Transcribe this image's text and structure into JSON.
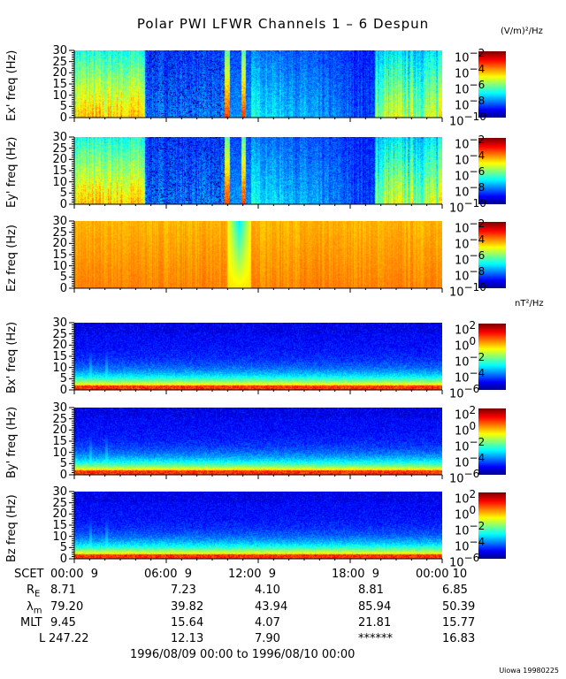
{
  "title": "Polar PWI LFWR Channels 1 – 6 Despun",
  "chart_data": {
    "type": "heatmap",
    "title": "Polar PWI LFWR Channels 1 – 6 Despun",
    "x_tick_labels": [
      "00:00  9",
      "06:00  9",
      "12:00  9",
      "18:00  9",
      "00:00 10"
    ],
    "x_range": [
      "1996/08/09 00:00",
      "1996/08/10 00:00"
    ],
    "colormap": "rainbow (blue-cyan-green-yellow-red)",
    "panels": [
      {
        "ylabel": "Ex' freq (Hz)",
        "ylim": [
          0,
          30
        ],
        "yticks": [
          "30",
          "25",
          "20",
          "15",
          "10",
          "5",
          "0"
        ],
        "colorbar": {
          "unit": "(V/m)²/Hz",
          "range": [
            1e-10,
            0.01
          ],
          "ticks": [
            {
              "base": "10",
              "exp": "−2"
            },
            {
              "base": "10",
              "exp": "−4"
            },
            {
              "base": "10",
              "exp": "−6"
            },
            {
              "base": "10",
              "exp": "−8"
            },
            {
              "base": "10",
              "exp": "−10"
            }
          ]
        }
      },
      {
        "ylabel": "Ey' freq (Hz)",
        "ylim": [
          0,
          30
        ],
        "yticks": [
          "30",
          "25",
          "20",
          "15",
          "10",
          "5",
          "0"
        ],
        "colorbar": {
          "unit": "",
          "range": [
            1e-10,
            0.01
          ],
          "ticks": [
            {
              "base": "10",
              "exp": "−2"
            },
            {
              "base": "10",
              "exp": "−4"
            },
            {
              "base": "10",
              "exp": "−6"
            },
            {
              "base": "10",
              "exp": "−8"
            },
            {
              "base": "10",
              "exp": "−10"
            }
          ]
        }
      },
      {
        "ylabel": "Ez freq (Hz)",
        "ylim": [
          0,
          30
        ],
        "yticks": [
          "30",
          "25",
          "20",
          "15",
          "10",
          "5",
          "0"
        ],
        "colorbar": {
          "unit": "",
          "range": [
            1e-10,
            0.01
          ],
          "ticks": [
            {
              "base": "10",
              "exp": "−2"
            },
            {
              "base": "10",
              "exp": "−4"
            },
            {
              "base": "10",
              "exp": "−6"
            },
            {
              "base": "10",
              "exp": "−8"
            },
            {
              "base": "10",
              "exp": "−10"
            }
          ]
        }
      },
      {
        "ylabel": "Bx' freq (Hz)",
        "ylim": [
          0,
          30
        ],
        "yticks": [
          "30",
          "25",
          "20",
          "15",
          "10",
          "5",
          "0"
        ],
        "colorbar": {
          "unit": "nT²/Hz",
          "range": [
            1e-06,
            100.0
          ],
          "ticks": [
            {
              "base": "10",
              "exp": "2"
            },
            {
              "base": "10",
              "exp": "0"
            },
            {
              "base": "10",
              "exp": "−2"
            },
            {
              "base": "10",
              "exp": "−4"
            },
            {
              "base": "10",
              "exp": "−6"
            }
          ]
        }
      },
      {
        "ylabel": "By' freq (Hz)",
        "ylim": [
          0,
          30
        ],
        "yticks": [
          "30",
          "25",
          "20",
          "15",
          "10",
          "5",
          "0"
        ],
        "colorbar": {
          "unit": "",
          "range": [
            1e-06,
            100.0
          ],
          "ticks": [
            {
              "base": "10",
              "exp": "2"
            },
            {
              "base": "10",
              "exp": "0"
            },
            {
              "base": "10",
              "exp": "−2"
            },
            {
              "base": "10",
              "exp": "−4"
            },
            {
              "base": "10",
              "exp": "−6"
            }
          ]
        }
      },
      {
        "ylabel": "Bz freq (Hz)",
        "ylim": [
          0,
          30
        ],
        "yticks": [
          "30",
          "25",
          "20",
          "15",
          "10",
          "5",
          "0"
        ],
        "colorbar": {
          "unit": "",
          "range": [
            1e-06,
            100.0
          ],
          "ticks": [
            {
              "base": "10",
              "exp": "2"
            },
            {
              "base": "10",
              "exp": "0"
            },
            {
              "base": "10",
              "exp": "−2"
            },
            {
              "base": "10",
              "exp": "−4"
            },
            {
              "base": "10",
              "exp": "−6"
            }
          ]
        }
      }
    ]
  },
  "ephemeris": {
    "rows": [
      {
        "label": "SCET",
        "sub": "",
        "values": [
          "00:00  9",
          "06:00  9",
          "12:00  9",
          "18:00  9",
          "00:00 10"
        ]
      },
      {
        "label": "R",
        "sub": "E",
        "values": [
          "8.71",
          "7.23",
          "4.10",
          "8.81",
          "6.85"
        ]
      },
      {
        "label": "λ",
        "sub": "m",
        "values": [
          "79.20",
          "39.82",
          "43.94",
          "85.94",
          "50.39"
        ]
      },
      {
        "label": "MLT",
        "sub": "",
        "values": [
          "9.45",
          "15.64",
          "4.07",
          "21.81",
          "15.77"
        ]
      },
      {
        "label": "L",
        "sub": "",
        "values": [
          "247.22",
          "12.13",
          "7.90",
          "******",
          "16.83"
        ]
      }
    ],
    "date_range": "1996/08/09 00:00 to 1996/08/10 00:00"
  },
  "credit": "Uiowa 19980225"
}
